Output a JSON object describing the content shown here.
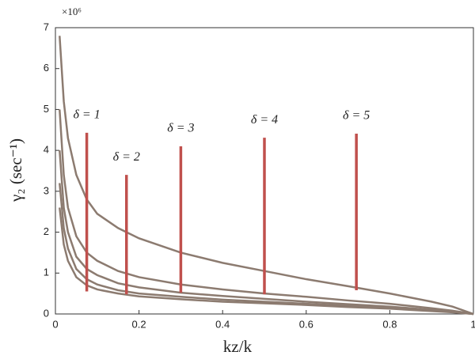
{
  "chart_data": {
    "type": "line",
    "y_label": "γ₂ (sec⁻¹)",
    "x_label": "kz/k",
    "y_scale_label": "×10⁶",
    "x": [
      0.01,
      0.02,
      0.03,
      0.05,
      0.075,
      0.1,
      0.15,
      0.2,
      0.3,
      0.4,
      0.5,
      0.6,
      0.7,
      0.8,
      0.9,
      0.95,
      1
    ],
    "series": [
      {
        "color": "#8c7b70",
        "values": [
          6.8,
          5.2,
          4.3,
          3.4,
          2.8,
          2.45,
          2.1,
          1.85,
          1.5,
          1.25,
          1.05,
          0.85,
          0.68,
          0.5,
          0.3,
          0.18,
          0
        ]
      },
      {
        "color": "#8c7b70",
        "values": [
          5.0,
          3.4,
          2.6,
          1.9,
          1.5,
          1.3,
          1.05,
          0.9,
          0.72,
          0.6,
          0.5,
          0.42,
          0.33,
          0.25,
          0.14,
          0.08,
          0
        ]
      },
      {
        "color": "#8c7b70",
        "values": [
          4.0,
          2.6,
          2.0,
          1.4,
          1.1,
          0.95,
          0.75,
          0.65,
          0.52,
          0.44,
          0.37,
          0.3,
          0.24,
          0.18,
          0.1,
          0.06,
          0
        ]
      },
      {
        "color": "#8c7b70",
        "values": [
          3.2,
          2.1,
          1.6,
          1.1,
          0.85,
          0.72,
          0.58,
          0.5,
          0.42,
          0.35,
          0.3,
          0.25,
          0.2,
          0.15,
          0.08,
          0.05,
          0
        ]
      },
      {
        "color": "#8c7b70",
        "values": [
          2.6,
          1.7,
          1.3,
          0.9,
          0.7,
          0.6,
          0.5,
          0.43,
          0.36,
          0.3,
          0.26,
          0.22,
          0.17,
          0.13,
          0.07,
          0.04,
          0
        ]
      }
    ],
    "markers": [
      {
        "label": "δ = 1",
        "x": 0.075,
        "y_bottom": 0.55,
        "y_top": 4.43
      },
      {
        "label": "δ = 2",
        "x": 0.17,
        "y_bottom": 0.48,
        "y_top": 3.4
      },
      {
        "label": "δ = 3",
        "x": 0.3,
        "y_bottom": 0.52,
        "y_top": 4.1
      },
      {
        "label": "δ = 4",
        "x": 0.5,
        "y_bottom": 0.48,
        "y_top": 4.31
      },
      {
        "label": "δ = 5",
        "x": 0.72,
        "y_bottom": 0.58,
        "y_top": 4.41
      }
    ],
    "marker_color": "#c0504d",
    "xlim": [
      0,
      1
    ],
    "xticks": [
      0,
      0.2,
      0.4,
      0.6,
      0.8,
      1
    ],
    "ylim": [
      0,
      7
    ],
    "yticks": [
      0,
      1,
      2,
      3,
      4,
      5,
      6,
      7
    ]
  }
}
